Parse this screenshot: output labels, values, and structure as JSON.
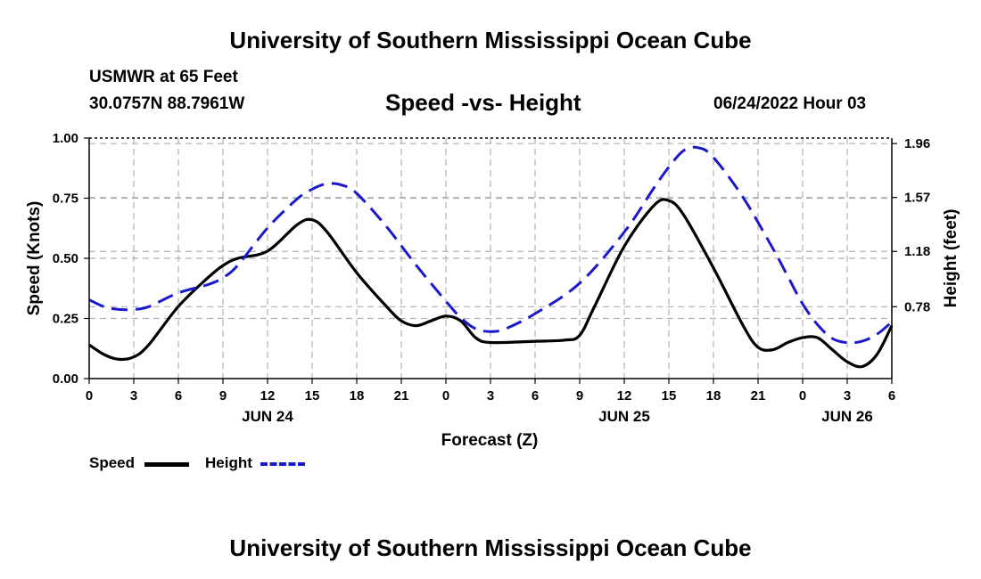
{
  "header": {
    "title_top": "University of Southern Mississippi Ocean Cube",
    "station": "USMWR at 65 Feet",
    "coords": "30.0757N  88.7961W",
    "subtitle": "Speed -vs- Height",
    "datetime": "06/24/2022 Hour 03",
    "title_bottom": "University of Southern Mississippi Ocean Cube"
  },
  "legend": {
    "speed_label": "Speed",
    "height_label": "Height"
  },
  "colors": {
    "speed": "#000000",
    "height": "#1a1acc",
    "grid": "#b0b0b0"
  },
  "chart_data": {
    "type": "line",
    "xlabel": "Forecast (Z)",
    "ylabel": "Speed (Knots)",
    "y2label": "Height (feet)",
    "x_range_hours": [
      0,
      54
    ],
    "ylim": [
      0,
      1.0
    ],
    "y2lim": [
      0.26,
      2.0
    ],
    "x_ticks": [
      {
        "h": 0,
        "label": "0"
      },
      {
        "h": 3,
        "label": "3"
      },
      {
        "h": 6,
        "label": "6"
      },
      {
        "h": 9,
        "label": "9"
      },
      {
        "h": 12,
        "label": "12"
      },
      {
        "h": 15,
        "label": "15"
      },
      {
        "h": 18,
        "label": "18"
      },
      {
        "h": 21,
        "label": "21"
      },
      {
        "h": 24,
        "label": "0"
      },
      {
        "h": 27,
        "label": "3"
      },
      {
        "h": 30,
        "label": "6"
      },
      {
        "h": 33,
        "label": "9"
      },
      {
        "h": 36,
        "label": "12"
      },
      {
        "h": 39,
        "label": "15"
      },
      {
        "h": 42,
        "label": "18"
      },
      {
        "h": 45,
        "label": "21"
      },
      {
        "h": 48,
        "label": "0"
      },
      {
        "h": 51,
        "label": "3"
      },
      {
        "h": 54,
        "label": "6"
      }
    ],
    "date_labels": [
      {
        "h": 12,
        "label": "JUN 24"
      },
      {
        "h": 36,
        "label": "JUN 25"
      },
      {
        "h": 51,
        "label": "JUN 26"
      }
    ],
    "y_ticks": [
      {
        "v": 0.0,
        "label": "0.00"
      },
      {
        "v": 0.25,
        "label": "0.25"
      },
      {
        "v": 0.5,
        "label": "0.50"
      },
      {
        "v": 0.75,
        "label": "0.75"
      },
      {
        "v": 1.0,
        "label": "1.00"
      }
    ],
    "y2_ticks": [
      {
        "v": 0.78,
        "label": "0.78"
      },
      {
        "v": 1.18,
        "label": "1.18"
      },
      {
        "v": 1.57,
        "label": "1.57"
      },
      {
        "v": 1.96,
        "label": "1.96"
      }
    ],
    "series": [
      {
        "name": "Speed",
        "axis": "left",
        "style": "solid",
        "x": [
          0,
          1,
          2,
          3,
          4,
          6,
          8,
          9,
          10,
          12,
          14,
          15,
          16,
          18,
          20,
          21,
          22,
          23,
          24,
          25,
          26,
          27,
          30,
          32,
          33,
          34,
          36,
          38,
          39,
          40,
          42,
          44,
          45,
          46,
          47,
          48,
          49,
          50,
          51,
          52,
          53,
          54
        ],
        "values": [
          0.14,
          0.1,
          0.08,
          0.09,
          0.14,
          0.3,
          0.42,
          0.47,
          0.5,
          0.53,
          0.64,
          0.66,
          0.61,
          0.44,
          0.3,
          0.24,
          0.22,
          0.24,
          0.26,
          0.24,
          0.17,
          0.15,
          0.155,
          0.16,
          0.18,
          0.3,
          0.55,
          0.72,
          0.74,
          0.68,
          0.46,
          0.22,
          0.13,
          0.12,
          0.15,
          0.17,
          0.17,
          0.12,
          0.07,
          0.05,
          0.1,
          0.22
        ]
      },
      {
        "name": "Height",
        "axis": "right",
        "style": "dashed",
        "x": [
          0,
          1,
          2,
          3,
          4,
          6,
          8,
          9,
          10,
          12,
          14,
          15,
          16,
          17,
          18,
          20,
          22,
          24,
          25,
          26,
          27,
          28,
          30,
          33,
          36,
          38,
          39,
          40,
          41,
          42,
          44,
          46,
          47,
          48,
          49,
          50,
          51,
          52,
          53,
          54
        ],
        "values": [
          0.83,
          0.78,
          0.76,
          0.76,
          0.78,
          0.88,
          0.94,
          0.99,
          1.08,
          1.35,
          1.56,
          1.63,
          1.67,
          1.66,
          1.6,
          1.36,
          1.08,
          0.82,
          0.7,
          0.62,
          0.6,
          0.62,
          0.73,
          0.95,
          1.32,
          1.64,
          1.79,
          1.91,
          1.93,
          1.86,
          1.57,
          1.2,
          1.0,
          0.8,
          0.65,
          0.55,
          0.52,
          0.53,
          0.58,
          0.67
        ]
      }
    ]
  }
}
